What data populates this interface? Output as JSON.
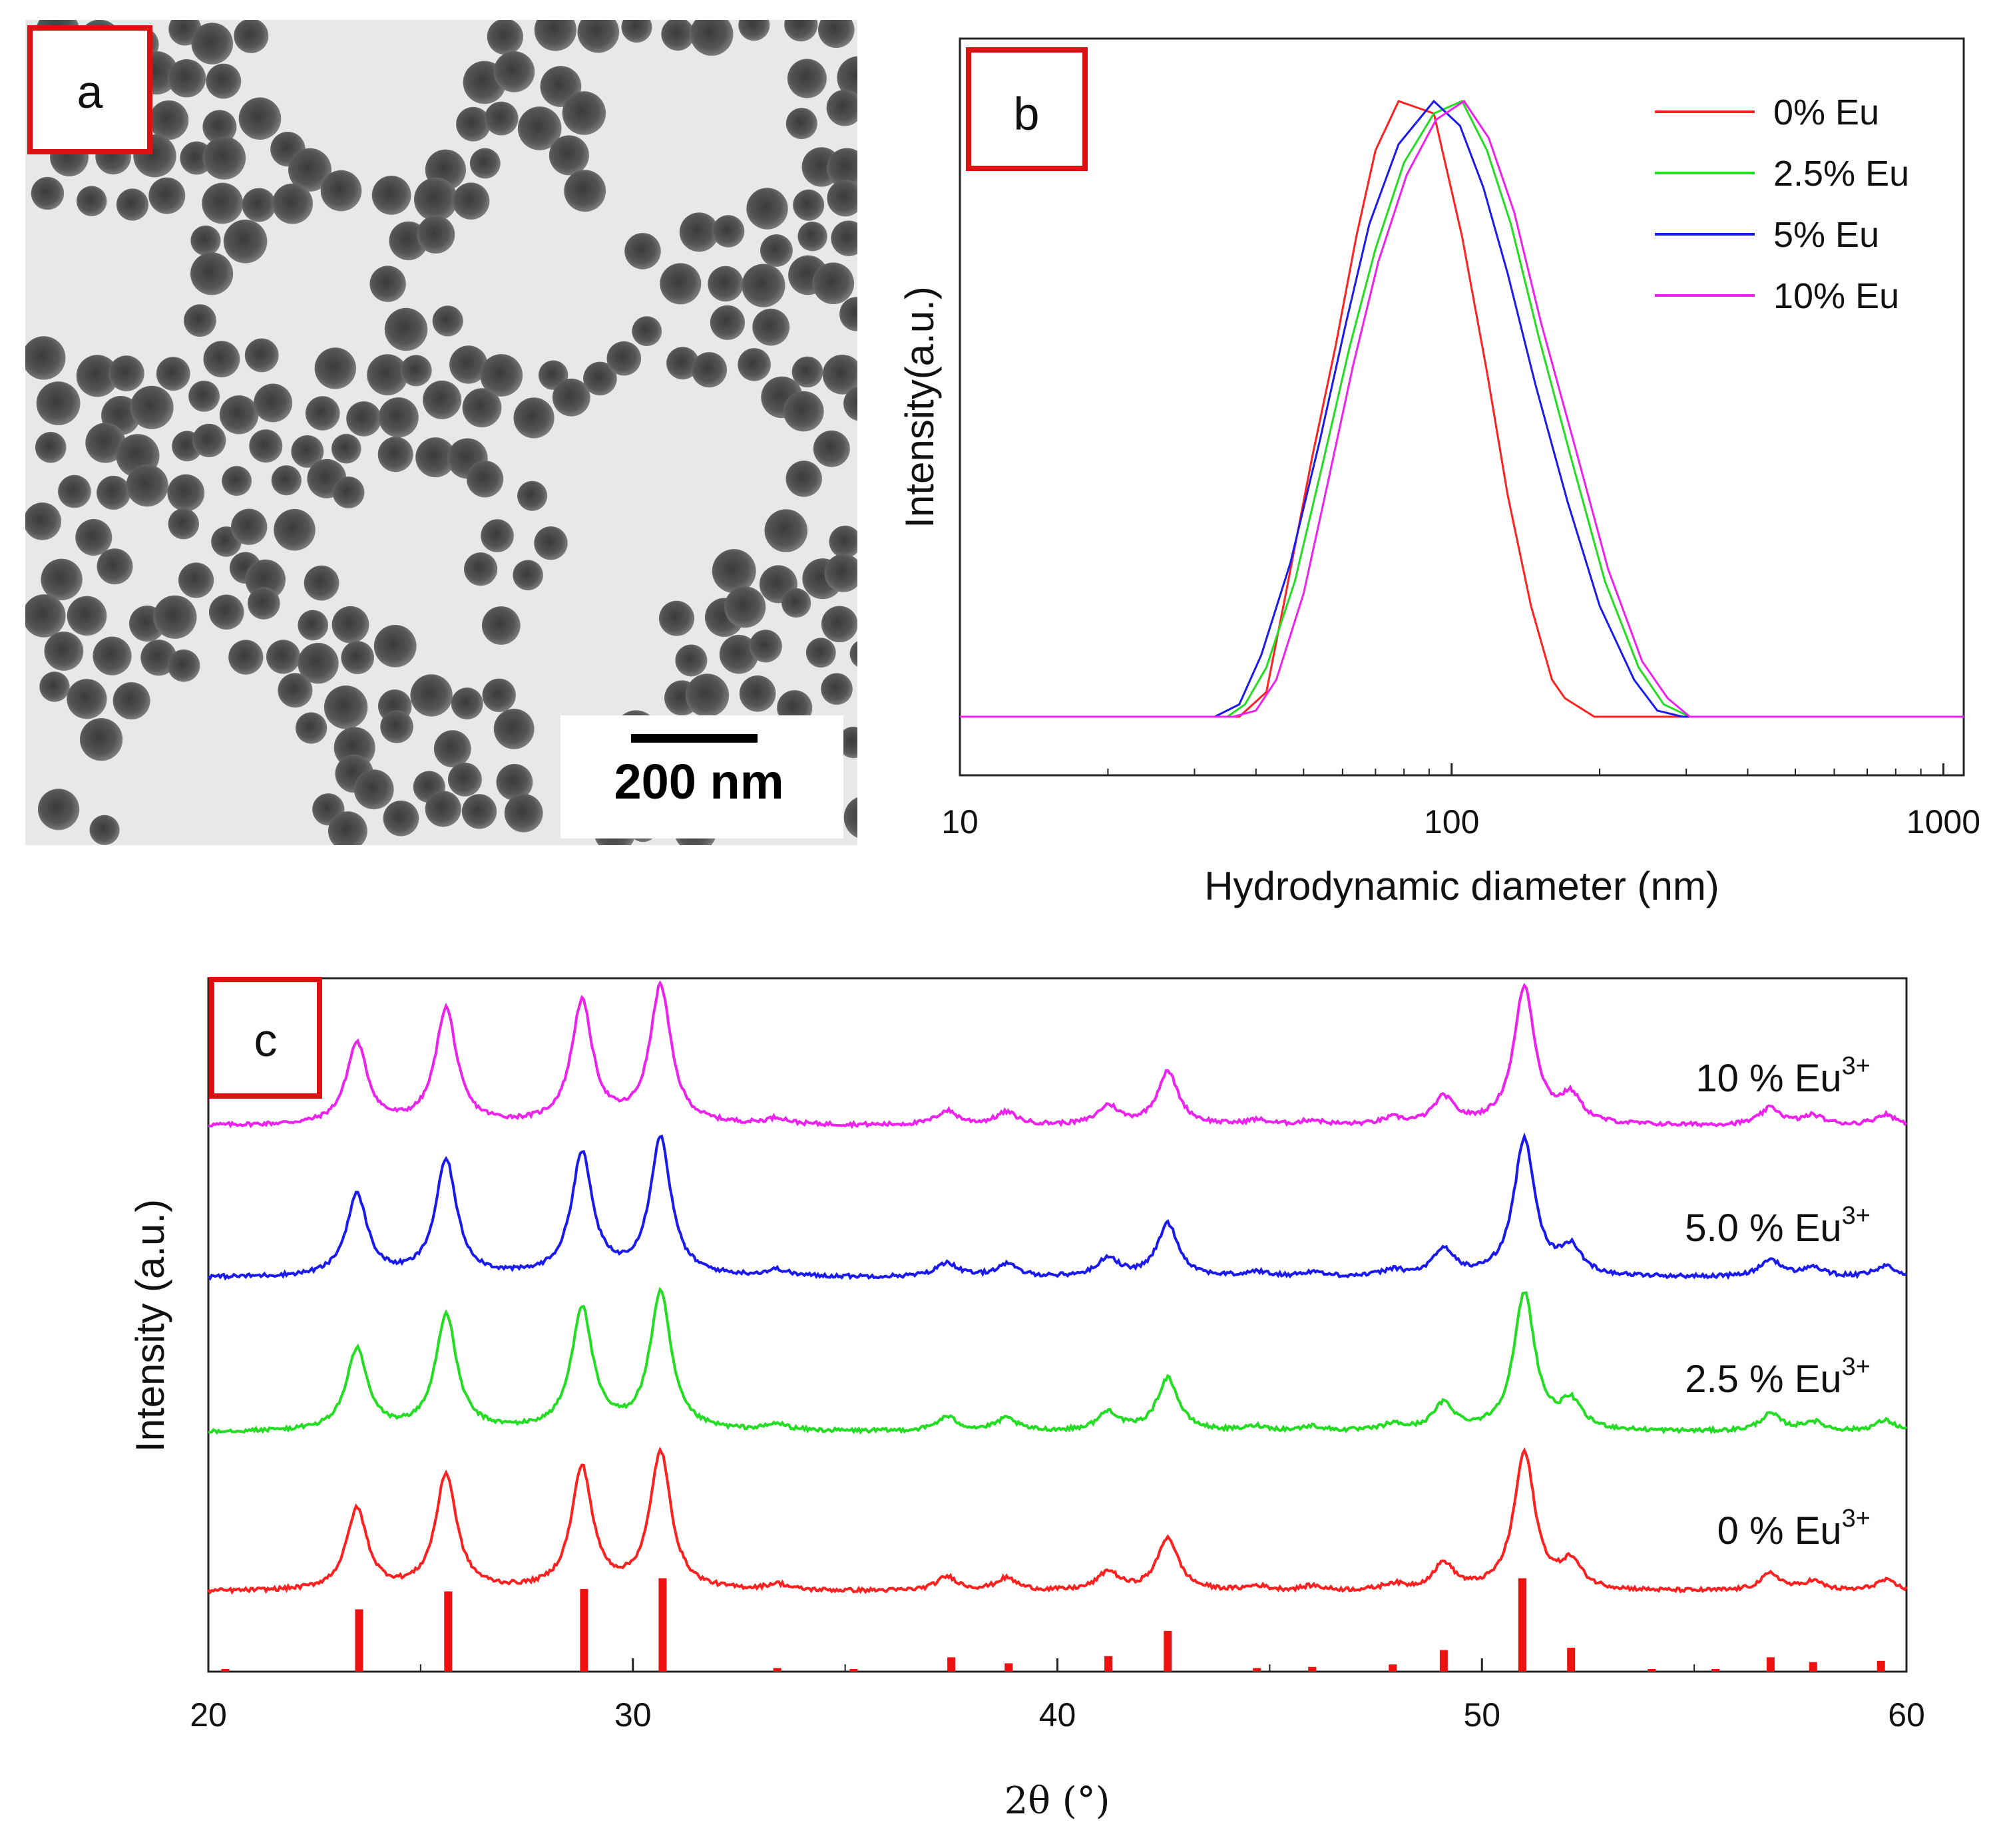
{
  "chart_data": [
    {
      "panel": "a",
      "type": "image",
      "scale_bar_label": "200 nm"
    },
    {
      "panel": "b",
      "type": "line",
      "xscale": "log",
      "xlim": [
        10,
        1100
      ],
      "xticks": [
        10,
        100,
        1000
      ],
      "xtick_labels": [
        "10",
        "100",
        "1000"
      ],
      "xlabel": "Hydrodynamic diameter (nm)",
      "ylabel": "Intensity(a.u.)",
      "legend_position": "top-right",
      "series": [
        {
          "name": "0% Eu",
          "color": "#ff2020",
          "x": [
            10,
            37,
            42,
            46,
            52,
            58,
            64,
            70,
            78,
            92,
            105,
            118,
            130,
            145,
            160,
            170,
            195,
            1100
          ],
          "y": [
            0,
            0,
            0.04,
            0.2,
            0.42,
            0.6,
            0.78,
            0.92,
            1.0,
            0.98,
            0.78,
            0.56,
            0.36,
            0.18,
            0.06,
            0.03,
            0,
            0
          ]
        },
        {
          "name": "2.5% Eu",
          "color": "#22dd22",
          "x": [
            10,
            35,
            38,
            42,
            48,
            55,
            62,
            70,
            80,
            92,
            105,
            118,
            132,
            150,
            175,
            205,
            240,
            270,
            305,
            1100
          ],
          "y": [
            0,
            0,
            0.02,
            0.08,
            0.22,
            0.42,
            0.6,
            0.76,
            0.9,
            0.98,
            1.0,
            0.92,
            0.8,
            0.62,
            0.42,
            0.22,
            0.08,
            0.02,
            0,
            0
          ]
        },
        {
          "name": "5% Eu",
          "color": "#1a1aee",
          "x": [
            10,
            33,
            37,
            41,
            47,
            54,
            61,
            68,
            78,
            92,
            104,
            116,
            130,
            148,
            172,
            200,
            235,
            262,
            295,
            1100
          ],
          "y": [
            0,
            0,
            0.02,
            0.1,
            0.25,
            0.45,
            0.64,
            0.8,
            0.93,
            1.0,
            0.96,
            0.86,
            0.72,
            0.54,
            0.35,
            0.18,
            0.06,
            0.01,
            0,
            0
          ]
        },
        {
          "name": "10% Eu",
          "color": "#ee22ee",
          "x": [
            10,
            36,
            40,
            44,
            50,
            56,
            63,
            71,
            81,
            93,
            106,
            119,
            134,
            152,
            178,
            208,
            244,
            275,
            305,
            1100
          ],
          "y": [
            0,
            0,
            0.01,
            0.06,
            0.2,
            0.38,
            0.57,
            0.74,
            0.88,
            0.97,
            1.0,
            0.94,
            0.82,
            0.64,
            0.44,
            0.24,
            0.09,
            0.03,
            0,
            0
          ]
        }
      ]
    },
    {
      "panel": "c",
      "type": "line",
      "xlim": [
        20,
        60
      ],
      "xticks": [
        20,
        30,
        40,
        50,
        60
      ],
      "xtick_labels": [
        "20",
        "30",
        "40",
        "50",
        "60"
      ],
      "xlabel": "2θ (°)",
      "ylabel": "Intensity (a.u.)",
      "peaks": [
        {
          "pos": 23.5,
          "h": 0.52,
          "w": 0.6
        },
        {
          "pos": 25.6,
          "h": 0.74,
          "w": 0.6
        },
        {
          "pos": 28.8,
          "h": 0.78,
          "w": 0.6
        },
        {
          "pos": 30.65,
          "h": 0.88,
          "w": 0.6
        },
        {
          "pos": 33.4,
          "h": 0.04,
          "w": 0.6
        },
        {
          "pos": 37.4,
          "h": 0.09,
          "w": 0.6
        },
        {
          "pos": 38.8,
          "h": 0.08,
          "w": 0.6
        },
        {
          "pos": 41.2,
          "h": 0.12,
          "w": 0.6
        },
        {
          "pos": 42.6,
          "h": 0.34,
          "w": 0.6
        },
        {
          "pos": 44.7,
          "h": 0.03,
          "w": 0.6
        },
        {
          "pos": 46.0,
          "h": 0.03,
          "w": 0.6
        },
        {
          "pos": 47.9,
          "h": 0.04,
          "w": 0.6
        },
        {
          "pos": 49.1,
          "h": 0.17,
          "w": 0.6
        },
        {
          "pos": 51.0,
          "h": 0.88,
          "w": 0.6
        },
        {
          "pos": 52.1,
          "h": 0.17,
          "w": 0.6
        },
        {
          "pos": 56.8,
          "h": 0.11,
          "w": 0.6
        },
        {
          "pos": 57.8,
          "h": 0.06,
          "w": 0.6
        },
        {
          "pos": 59.5,
          "h": 0.07,
          "w": 0.6
        }
      ],
      "series": [
        {
          "name": "10 % Eu",
          "superscript": "3+",
          "color": "#ee22ee",
          "offset": 3
        },
        {
          "name": "5.0 % Eu",
          "superscript": "3+",
          "color": "#1a1aee",
          "offset": 2
        },
        {
          "name": "2.5 % Eu",
          "superscript": "3+",
          "color": "#22dd22",
          "offset": 1
        },
        {
          "name": "0 % Eu",
          "superscript": "3+",
          "color": "#ff2020",
          "offset": 0
        }
      ],
      "reference": {
        "color": "#ee1111",
        "positions": [
          20.4,
          23.55,
          25.65,
          28.85,
          30.7,
          33.4,
          35.2,
          37.5,
          38.85,
          41.2,
          42.6,
          44.7,
          46.0,
          47.9,
          49.1,
          50.95,
          52.1,
          54.0,
          55.5,
          56.8,
          57.8,
          59.4
        ],
        "heights": [
          0.02,
          0.52,
          0.67,
          0.69,
          0.78,
          0.03,
          0.02,
          0.12,
          0.07,
          0.13,
          0.34,
          0.03,
          0.04,
          0.06,
          0.18,
          0.78,
          0.2,
          0.02,
          0.02,
          0.12,
          0.08,
          0.09
        ]
      }
    }
  ],
  "panel_labels": {
    "a": "a",
    "b": "b",
    "c": "c"
  }
}
